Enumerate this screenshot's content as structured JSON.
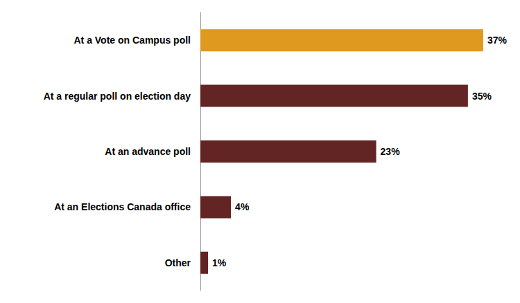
{
  "chart_data": {
    "type": "bar",
    "orientation": "horizontal",
    "categories": [
      "At a Vote on Campus poll",
      "At a regular poll on election day",
      "At an advance poll",
      "At an Elections Canada office",
      "Other"
    ],
    "values": [
      37,
      35,
      23,
      4,
      1
    ],
    "value_labels": [
      "37%",
      "35%",
      "23%",
      "4%",
      "1%"
    ],
    "colors": [
      "#e0991f",
      "#632424",
      "#632424",
      "#632424",
      "#632424"
    ],
    "xlim": [
      0,
      40
    ],
    "data_labels": true,
    "tick_labels": "y",
    "grid": false
  }
}
